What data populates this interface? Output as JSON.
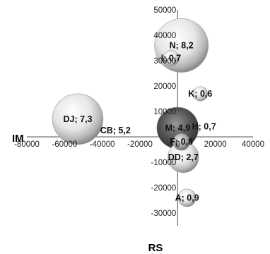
{
  "chart_data": {
    "type": "bubble",
    "title": "",
    "xlabel": "IM",
    "ylabel": "RS",
    "xlim": [
      -80000,
      40000
    ],
    "ylim": [
      -35000,
      50000
    ],
    "grid": false,
    "x_ticks": [
      "-80000",
      "-60000",
      "-40000",
      "-20000",
      "0",
      "20000",
      "40000"
    ],
    "y_ticks": [
      "50000",
      "40000",
      "30000",
      "20000",
      "10000",
      "0",
      "-10000",
      "-20000",
      "-30000"
    ],
    "x_tick_values": [
      -80000,
      -60000,
      -40000,
      -20000,
      0,
      20000,
      40000
    ],
    "y_tick_values": [
      50000,
      40000,
      30000,
      20000,
      10000,
      0,
      -10000,
      -20000,
      -30000
    ],
    "points": [
      {
        "label": "N; 8,2",
        "x": 2000,
        "y": 36000,
        "size": 8.2,
        "tone": "light"
      },
      {
        "label": "I; 0,7",
        "x": -3500,
        "y": 31000,
        "size": 0.7,
        "tone": "light"
      },
      {
        "label": "DJ; 7,3",
        "x": -53000,
        "y": 7000,
        "size": 7.3,
        "tone": "light"
      },
      {
        "label": "CB; 5,2",
        "x": -33000,
        "y": 2500,
        "size": 5.2,
        "tone": "none"
      },
      {
        "label": "M; 4,9",
        "x": 0,
        "y": 3500,
        "size": 4.9,
        "tone": "dark"
      },
      {
        "label": "F; 0,8",
        "x": 2000,
        "y": -2000,
        "size": 0.8,
        "tone": "medium"
      },
      {
        "label": "H; 0,7",
        "x": 14000,
        "y": 4000,
        "size": 0.7,
        "tone": "none"
      },
      {
        "label": "K; 0,6",
        "x": 12000,
        "y": 17000,
        "size": 0.6,
        "tone": "light"
      },
      {
        "label": "DD; 2,7",
        "x": 3000,
        "y": -8000,
        "size": 2.7,
        "tone": "light"
      },
      {
        "label": "A; 0,9",
        "x": 5000,
        "y": -24000,
        "size": 0.9,
        "tone": "light"
      }
    ]
  }
}
